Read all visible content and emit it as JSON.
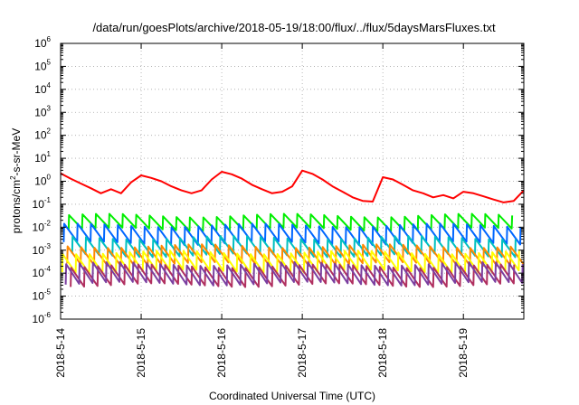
{
  "chart_data": {
    "type": "line",
    "title": "/data/run/goesPlots/archive/2018-05-19/18:00/flux/../flux/5daysMarsFluxes.txt",
    "xlabel": "Coordinated Universal Time (UTC)",
    "ylabel_main": "protons/cm",
    "ylabel_sup": "2",
    "ylabel_rest": "-s-sr-MeV",
    "y_scale": "log",
    "ylim": [
      1e-06,
      1000000.0
    ],
    "xlim": [
      "2018-05-14",
      "2018-05-19 18:00"
    ],
    "grid": true,
    "x_ticks": [
      "2018-5-14",
      "2018-5-15",
      "2018-5-16",
      "2018-5-17",
      "2018-5-18",
      "2018-5-19"
    ],
    "y_ticks": [
      {
        "base": "10",
        "exp": "-6"
      },
      {
        "base": "10",
        "exp": "-5"
      },
      {
        "base": "10",
        "exp": "-4"
      },
      {
        "base": "10",
        "exp": "-3"
      },
      {
        "base": "10",
        "exp": "-2"
      },
      {
        "base": "10",
        "exp": "-1"
      },
      {
        "base": "10",
        "exp": "0"
      },
      {
        "base": "10",
        "exp": "1"
      },
      {
        "base": "10",
        "exp": "2"
      },
      {
        "base": "10",
        "exp": "3"
      },
      {
        "base": "10",
        "exp": "4"
      },
      {
        "base": "10",
        "exp": "5"
      },
      {
        "base": "10",
        "exp": "6"
      }
    ],
    "series": [
      {
        "color": "#ff0000",
        "x": [
          "2018-05-14 00:00",
          "2018-05-14 03:00",
          "2018-05-14 06:00",
          "2018-05-14 09:00",
          "2018-05-14 12:00",
          "2018-05-14 15:00",
          "2018-05-14 18:00",
          "2018-05-14 21:00",
          "2018-05-15 00:00",
          "2018-05-15 03:00",
          "2018-05-15 06:00",
          "2018-05-15 09:00",
          "2018-05-15 12:00",
          "2018-05-15 15:00",
          "2018-05-15 18:00",
          "2018-05-15 21:00",
          "2018-05-16 00:00",
          "2018-05-16 03:00",
          "2018-05-16 06:00",
          "2018-05-16 09:00",
          "2018-05-16 12:00",
          "2018-05-16 15:00",
          "2018-05-16 18:00",
          "2018-05-16 21:00",
          "2018-05-17 00:00",
          "2018-05-17 03:00",
          "2018-05-17 06:00",
          "2018-05-17 09:00",
          "2018-05-17 12:00",
          "2018-05-17 15:00",
          "2018-05-17 18:00",
          "2018-05-17 21:00",
          "2018-05-18 00:00",
          "2018-05-18 03:00",
          "2018-05-18 06:00",
          "2018-05-18 09:00",
          "2018-05-18 12:00",
          "2018-05-18 15:00",
          "2018-05-18 18:00",
          "2018-05-18 21:00",
          "2018-05-19 00:00",
          "2018-05-19 03:00",
          "2018-05-19 06:00",
          "2018-05-19 09:00",
          "2018-05-19 12:00",
          "2018-05-19 15:00",
          "2018-05-19 18:00"
        ],
        "values": [
          2.2,
          1.3,
          0.8,
          0.5,
          0.3,
          0.45,
          0.3,
          0.9,
          1.8,
          1.4,
          1.0,
          0.6,
          0.4,
          0.3,
          0.4,
          1.2,
          2.6,
          2.0,
          1.3,
          0.7,
          0.45,
          0.3,
          0.35,
          0.6,
          2.9,
          2.1,
          1.2,
          0.6,
          0.35,
          0.2,
          0.14,
          0.13,
          1.5,
          1.2,
          0.7,
          0.4,
          0.3,
          0.2,
          0.25,
          0.18,
          0.35,
          0.3,
          0.22,
          0.16,
          0.12,
          0.14,
          0.4
        ]
      },
      {
        "color": "#00ee00",
        "base": 0.008,
        "peak": 0.032
      },
      {
        "color": "#0066ff",
        "base": 0.002,
        "peak": 0.012
      },
      {
        "color": "#00c0c0",
        "base": 0.0006,
        "peak": 0.0035
      },
      {
        "color": "#ff8800",
        "base": 0.00025,
        "peak": 0.0015
      },
      {
        "color": "#ffff00",
        "base": 0.00012,
        "peak": 0.0008
      },
      {
        "color": "#b03060",
        "base": 3e-05,
        "peak": 0.0002
      },
      {
        "color": "#7b3fa0",
        "base": 3.5e-05,
        "peak": 0.00025
      }
    ],
    "sawtooth_period_hours": 4
  }
}
